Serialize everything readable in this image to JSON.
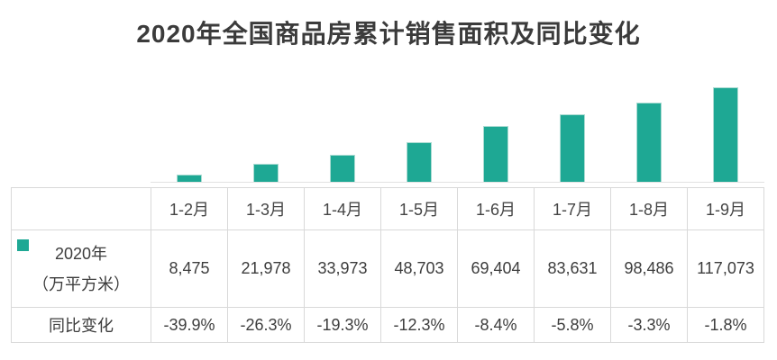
{
  "title": "2020年全国商品房累计销售面积及同比变化",
  "colors": {
    "bar": "#1EA894",
    "bar_edge": "#aadbd2",
    "border": "#d9d9d9",
    "axis_line": "#e2e2e2",
    "title_text": "#3b3b3b",
    "table_text": "#3d3d3d"
  },
  "chart_data": {
    "type": "bar",
    "title": "2020年全国商品房累计销售面积及同比变化",
    "categories": [
      "1-2月",
      "1-3月",
      "1-4月",
      "1-5月",
      "1-6月",
      "1-7月",
      "1-8月",
      "1-9月"
    ],
    "series": [
      {
        "name": "2020年（万平方米）",
        "values": [
          8475,
          21978,
          33973,
          48703,
          69404,
          83631,
          98486,
          117073
        ]
      },
      {
        "name": "同比变化",
        "values": [
          -39.9,
          -26.3,
          -19.3,
          -12.3,
          -8.4,
          -5.8,
          -3.3,
          -1.8
        ]
      }
    ],
    "xlabel": "",
    "ylabel": "万平方米",
    "ylim": [
      0,
      117073
    ],
    "grid": false,
    "legend_position": "table-left-swatch",
    "bar_color": "#1EA894"
  },
  "table": {
    "headers": [
      "1-2月",
      "1-3月",
      "1-4月",
      "1-5月",
      "1-6月",
      "1-7月",
      "1-8月",
      "1-9月"
    ],
    "area_row": {
      "label_line1": "2020年",
      "label_line2": "（万平方米）",
      "values": [
        "8,475",
        "21,978",
        "33,973",
        "48,703",
        "69,404",
        "83,631",
        "98,486",
        "117,073"
      ]
    },
    "yoy_row": {
      "label": "同比变化",
      "values": [
        "-39.9%",
        "-26.3%",
        "-19.3%",
        "-12.3%",
        "-8.4%",
        "-5.8%",
        "-3.3%",
        "-1.8%"
      ]
    }
  }
}
